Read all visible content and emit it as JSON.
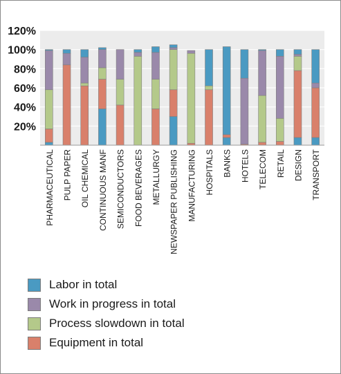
{
  "chart_data": {
    "type": "bar",
    "stacked": true,
    "categories": [
      "PHARMACEUTICAL",
      "PULP PAPER",
      "OIL CHEMICAL",
      "CONTINUOUS MANF",
      "SEMICONDUCTORS",
      "FOOD BEVERAGES",
      "METALLURGY",
      "NEWSPAPER PUBLISHING",
      "MANUFACTURING",
      "HOSPITALS",
      "BANKS",
      "HOTELS",
      "TELECOM",
      "RETAIL",
      "DESIGN",
      "TRANSPORT"
    ],
    "series": [
      {
        "name": "Labor in total",
        "color": "#4a9ac2",
        "values": [
          3,
          0,
          0,
          38,
          0,
          0,
          0,
          30,
          0,
          0,
          8,
          0,
          0,
          0,
          8,
          8
        ]
      },
      {
        "name": "Equipment in total",
        "color": "#d9806b",
        "values": [
          14,
          84,
          62,
          31,
          42,
          0,
          38,
          28,
          2,
          58,
          3,
          1,
          3,
          4,
          70,
          52
        ]
      },
      {
        "name": "Process slowdown in total",
        "color": "#b4c98a",
        "values": [
          41,
          0,
          3,
          12,
          27,
          93,
          31,
          42,
          94,
          4,
          0,
          0,
          49,
          24,
          15,
          0
        ]
      },
      {
        "name": "Work in progress in total",
        "color": "#9a89aa",
        "values": [
          41,
          12,
          27,
          19,
          31,
          4,
          28,
          2,
          3,
          0,
          0,
          69,
          47,
          65,
          2,
          5
        ]
      },
      {
        "name": "Labor in total",
        "color": "#4a9ac2",
        "values": [
          1,
          4,
          8,
          2,
          0,
          3,
          6,
          3,
          0,
          38,
          92,
          30,
          1,
          7,
          5,
          35
        ]
      }
    ],
    "legend": [
      "Labor in total",
      "Work in progress in total",
      "Process slowdown in total",
      "Equipment in total"
    ],
    "legend_colors": [
      "#4a9ac2",
      "#9a89aa",
      "#b4c98a",
      "#d9806b"
    ],
    "y_ticks": [
      "20%",
      "40%",
      "60%",
      "80%",
      "100%",
      "120%"
    ],
    "ylim": [
      0,
      120
    ],
    "grid": true,
    "legend_position": "bottom"
  }
}
